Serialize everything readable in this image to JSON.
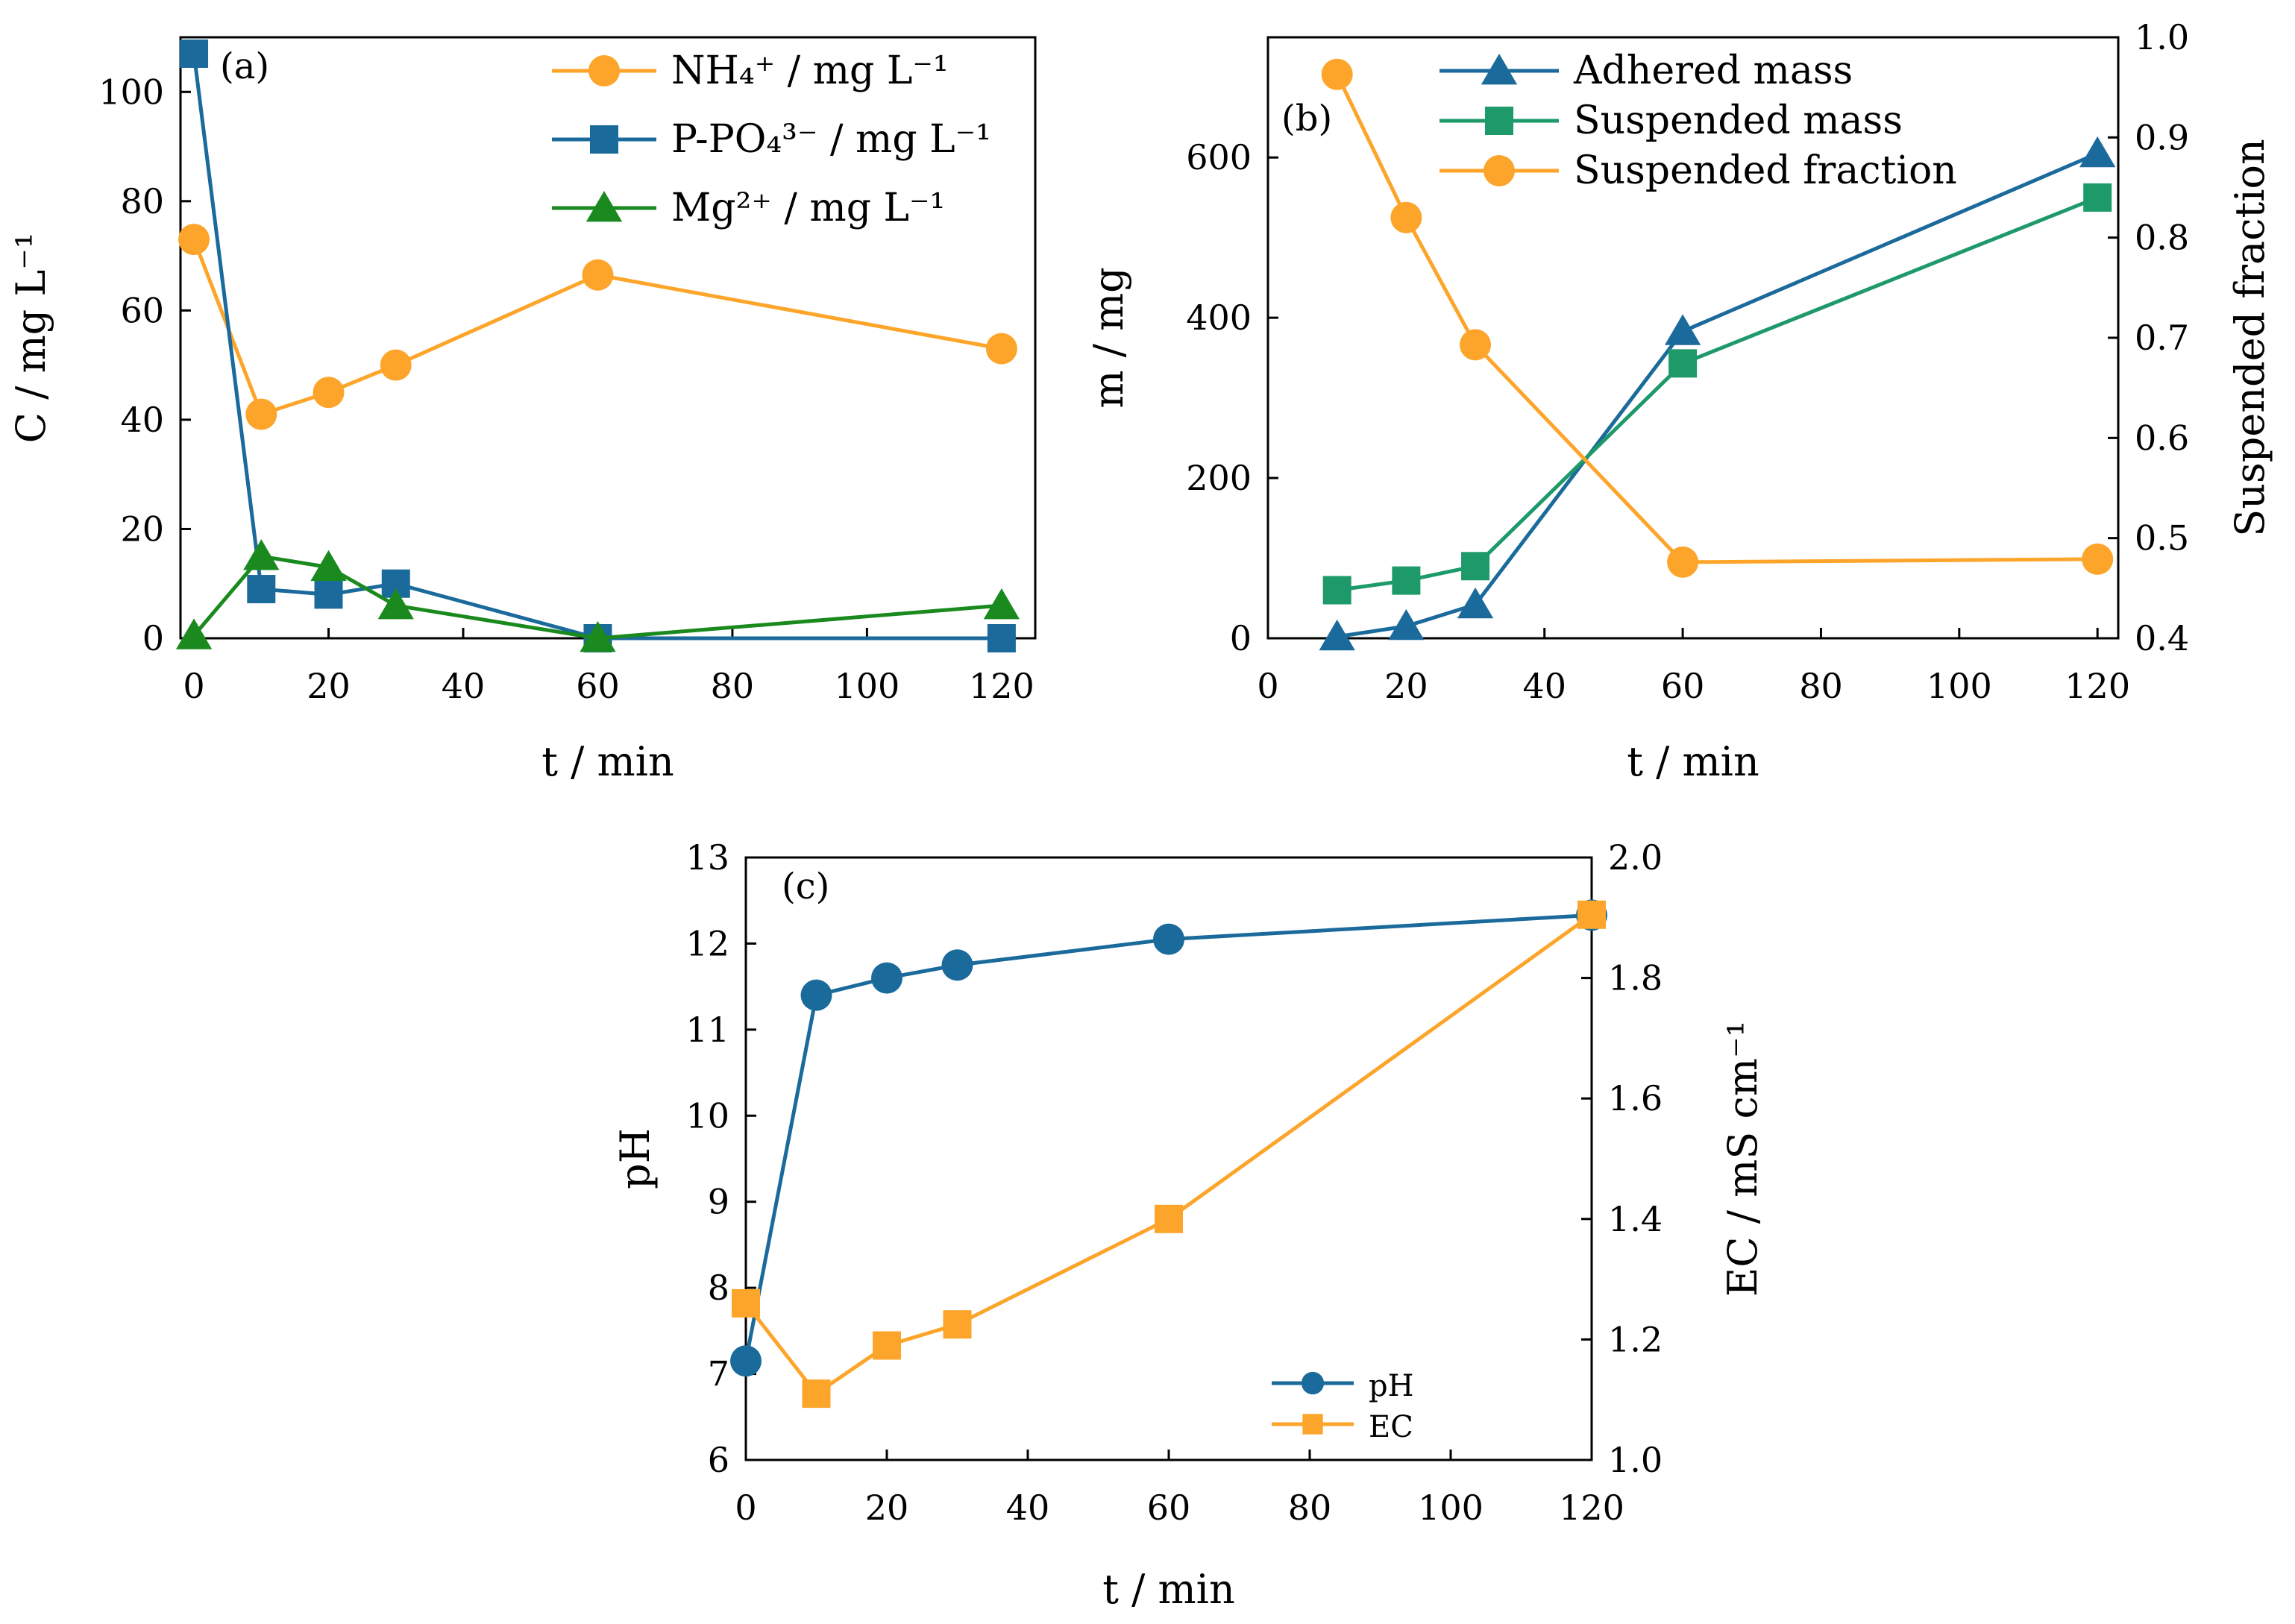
{
  "colors": {
    "orange": "#FDA52A",
    "blue": "#1B6A9C",
    "green": "#1A8A1F",
    "teal_green": "#1E9A6A",
    "axis": "#000000"
  },
  "chart_data": [
    {
      "id": "a",
      "type": "line",
      "panel_label": "(a)",
      "xlabel": "t  / min",
      "ylabel": "C / mg L⁻¹",
      "xlim": [
        -2,
        125
      ],
      "ylim": [
        0,
        110
      ],
      "xticks": [
        0,
        20,
        40,
        60,
        80,
        100,
        120
      ],
      "xtick_labels": [
        "0",
        "20",
        "40",
        "60",
        "80",
        "100",
        "120"
      ],
      "yticks": [
        0,
        20,
        40,
        60,
        80,
        100
      ],
      "ytick_labels": [
        "0",
        "20",
        "40",
        "60",
        "80",
        "100"
      ],
      "legend_position": "top-right",
      "series": [
        {
          "name": "NH₄⁺ / mg L⁻¹",
          "color": "#FDA52A",
          "marker": "circle",
          "axis": "left",
          "x": [
            0,
            10,
            20,
            30,
            60,
            120
          ],
          "y": [
            73,
            41,
            45,
            50,
            66.5,
            53
          ]
        },
        {
          "name": "P-PO₄³⁻ / mg L⁻¹",
          "color": "#1B6A9C",
          "marker": "square",
          "axis": "left",
          "x": [
            0,
            10,
            20,
            30,
            60,
            120
          ],
          "y": [
            107,
            9,
            8,
            10,
            0,
            0
          ]
        },
        {
          "name": "Mg²⁺ / mg L⁻¹",
          "color": "#1A8A1F",
          "marker": "triangle",
          "axis": "left",
          "x": [
            0,
            10,
            20,
            30,
            60,
            120
          ],
          "y": [
            0.5,
            15,
            13,
            6,
            0,
            6
          ]
        }
      ]
    },
    {
      "id": "b",
      "type": "line",
      "panel_label": "(b)",
      "xlabel": "t / min",
      "ylabel": "m / mg",
      "y2label": "Suspended fraction",
      "xlim": [
        0,
        123
      ],
      "ylim": [
        0,
        750
      ],
      "y2lim": [
        0.4,
        1.0
      ],
      "xticks": [
        0,
        20,
        40,
        60,
        80,
        100,
        120
      ],
      "xtick_labels": [
        "0",
        "20",
        "40",
        "60",
        "80",
        "100",
        "120"
      ],
      "yticks": [
        0,
        200,
        400,
        600
      ],
      "ytick_labels": [
        "0",
        "200",
        "400",
        "600"
      ],
      "y2ticks": [
        0.4,
        0.5,
        0.6,
        0.7,
        0.8,
        0.9,
        1.0
      ],
      "y2tick_labels": [
        "0.4",
        "0.5",
        "0.6",
        "0.7",
        "0.8",
        "0.9",
        "1.0"
      ],
      "legend_position": "top-center",
      "series": [
        {
          "name": "Adhered mass",
          "color": "#1B6A9C",
          "marker": "triangle",
          "axis": "left",
          "x": [
            10,
            20,
            30,
            60,
            120
          ],
          "y": [
            2,
            15,
            42,
            383,
            605
          ]
        },
        {
          "name": "Suspended mass",
          "color": "#1E9A6A",
          "marker": "square",
          "axis": "left",
          "x": [
            10,
            20,
            30,
            60,
            120
          ],
          "y": [
            60,
            72,
            90,
            343,
            550
          ]
        },
        {
          "name": "Suspended fraction",
          "color": "#FDA52A",
          "marker": "circle",
          "axis": "right",
          "x": [
            10,
            20,
            30,
            60,
            120
          ],
          "y": [
            0.963,
            0.82,
            0.693,
            0.476,
            0.479
          ]
        }
      ]
    },
    {
      "id": "c",
      "type": "line",
      "panel_label": "(c)",
      "xlabel": "t / min",
      "ylabel": "pH",
      "y2label": "EC / mS cm⁻¹",
      "xlim": [
        0,
        120
      ],
      "ylim": [
        6,
        13
      ],
      "y2lim": [
        1.0,
        2.0
      ],
      "xticks": [
        0,
        20,
        40,
        60,
        80,
        100,
        120
      ],
      "xtick_labels": [
        "0",
        "20",
        "40",
        "60",
        "80",
        "100",
        "120"
      ],
      "yticks": [
        6,
        7,
        8,
        9,
        10,
        11,
        12,
        13
      ],
      "ytick_labels": [
        "6",
        "7",
        "8",
        "9",
        "10",
        "11",
        "12",
        "13"
      ],
      "y2ticks": [
        1.0,
        1.2,
        1.4,
        1.6,
        1.8,
        2.0
      ],
      "y2tick_labels": [
        "1.0",
        "1.2",
        "1.4",
        "1.6",
        "1.8",
        "2.0"
      ],
      "legend_position": "bottom-right",
      "series": [
        {
          "name": "pH",
          "color": "#1B6A9C",
          "marker": "circle",
          "axis": "left",
          "x": [
            0,
            10,
            20,
            30,
            60,
            120
          ],
          "y": [
            7.15,
            11.4,
            11.6,
            11.75,
            12.05,
            12.33
          ]
        },
        {
          "name": "EC",
          "color": "#FDA52A",
          "marker": "square",
          "axis": "right",
          "x": [
            0,
            10,
            20,
            30,
            60,
            120
          ],
          "y": [
            1.26,
            1.11,
            1.19,
            1.225,
            1.4,
            1.905
          ]
        }
      ]
    }
  ]
}
